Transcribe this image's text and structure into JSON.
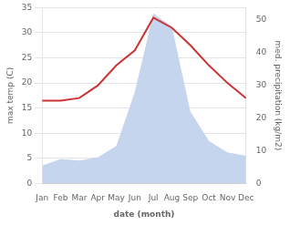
{
  "chart_data": {
    "type": "line",
    "categories": [
      "Jan",
      "Feb",
      "Mar",
      "Apr",
      "May",
      "Jun",
      "Jul",
      "Aug",
      "Sep",
      "Oct",
      "Nov",
      "Dec"
    ],
    "xlabel": "date (month)",
    "ylabel": "max temp (C)",
    "y2label": "med. precipitation (kg/m2)",
    "series": [
      {
        "type": "area",
        "axis": "y2",
        "color": "#c5d5ee",
        "values": [
          5.5,
          7.5,
          7.0,
          8.0,
          11.5,
          28.0,
          52.0,
          48.0,
          22.0,
          13.0,
          9.5,
          8.5
        ]
      },
      {
        "type": "line",
        "color": "#cc3333",
        "values": [
          16.5,
          16.5,
          17.0,
          19.5,
          23.5,
          26.5,
          33.0,
          31.0,
          27.5,
          23.5,
          20.0,
          17.0
        ]
      }
    ],
    "ylim": [
      0,
      35
    ],
    "yticks": [
      0,
      5,
      10,
      15,
      20,
      25,
      30,
      35
    ],
    "y2lim": [
      0,
      53.8
    ],
    "y2ticks": [
      0,
      10,
      20,
      30,
      40,
      50
    ],
    "grid": true
  }
}
